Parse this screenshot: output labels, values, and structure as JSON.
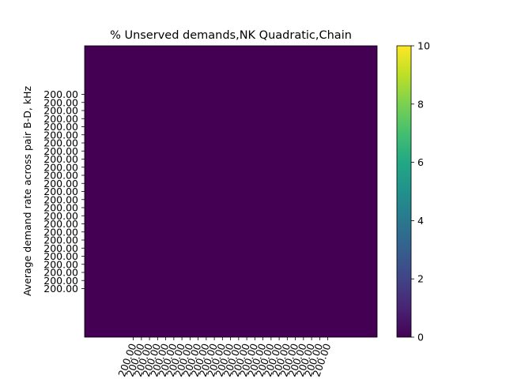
{
  "chart_data": {
    "type": "heatmap",
    "title": "% Unserved demands,NK Quadratic,Chain",
    "xlabel": "",
    "ylabel": "Average demand rate across pair B-D, kHz",
    "x_tick_labels": [
      "200.00",
      "200.00",
      "200.00",
      "200.00",
      "200.00",
      "200.00",
      "200.00",
      "200.00",
      "200.00",
      "200.00",
      "200.00",
      "200.00",
      "200.00",
      "200.00",
      "200.00",
      "200.00",
      "200.00",
      "200.00",
      "200.00",
      "200.00",
      "200.00",
      "200.00",
      "200.00",
      "200.00",
      "200.00"
    ],
    "y_tick_labels": [
      "200.00",
      "200.00",
      "200.00",
      "200.00",
      "200.00",
      "200.00",
      "200.00",
      "200.00",
      "200.00",
      "200.00",
      "200.00",
      "200.00",
      "200.00",
      "200.00",
      "200.00",
      "200.00",
      "200.00",
      "200.00",
      "200.00",
      "200.00",
      "200.00",
      "200.00",
      "200.00",
      "200.00",
      "200.00"
    ],
    "values": [
      [
        0
      ]
    ],
    "colormap": "viridis",
    "colorbar": {
      "range": [
        0,
        10
      ],
      "ticks": [
        "0",
        "2",
        "4",
        "6",
        "8",
        "10"
      ]
    },
    "grid": false,
    "cell_color": "#440154"
  }
}
